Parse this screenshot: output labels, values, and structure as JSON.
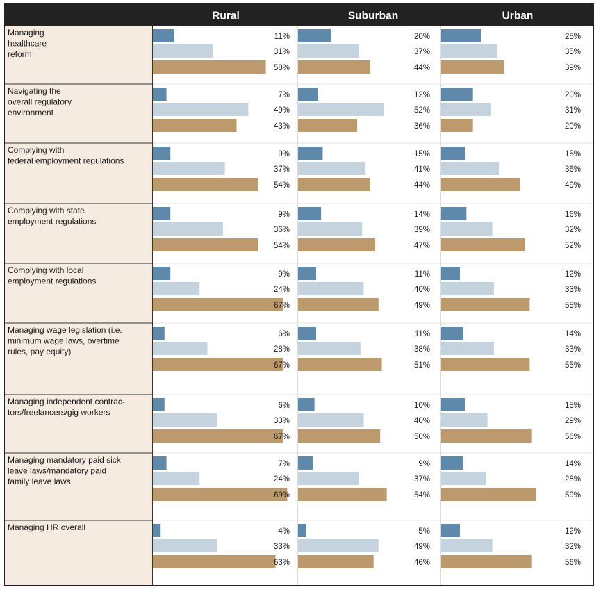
{
  "chart_data": {
    "type": "bar",
    "orientation": "horizontal",
    "groups": [
      "Rural",
      "Suburban",
      "Urban"
    ],
    "value_suffix": "%",
    "xlim": [
      0,
      70
    ],
    "colors": [
      "#5f89aa",
      "#c5d3df",
      "#bd996e"
    ],
    "label_bg": "#f6ebe1",
    "header_bg": "#222222",
    "rows": [
      {
        "label": [
          "Managing",
          "healthcare",
          "reform"
        ],
        "values": [
          [
            11,
            31,
            58
          ],
          [
            20,
            37,
            44
          ],
          [
            25,
            35,
            39
          ]
        ]
      },
      {
        "label": [
          "Navigating the",
          "overall regulatory",
          "environment"
        ],
        "values": [
          [
            7,
            49,
            43
          ],
          [
            12,
            52,
            36
          ],
          [
            20,
            31,
            20
          ]
        ]
      },
      {
        "label": [
          "Complying with",
          "federal employment regulations"
        ],
        "values": [
          [
            9,
            37,
            54
          ],
          [
            15,
            41,
            44
          ],
          [
            15,
            36,
            49
          ]
        ]
      },
      {
        "label": [
          "Complying with state",
          "employment regulations"
        ],
        "values": [
          [
            9,
            36,
            54
          ],
          [
            14,
            39,
            47
          ],
          [
            16,
            32,
            52
          ]
        ]
      },
      {
        "label": [
          "Complying with local",
          "employment regulations"
        ],
        "values": [
          [
            9,
            24,
            67
          ],
          [
            11,
            40,
            49
          ],
          [
            12,
            33,
            55
          ]
        ]
      },
      {
        "label": [
          "Managing wage legislation (i.e.",
          "minimum wage laws, overtime",
          "rules, pay equity)"
        ],
        "values": [
          [
            6,
            28,
            67
          ],
          [
            11,
            38,
            51
          ],
          [
            14,
            33,
            55
          ]
        ]
      },
      {
        "label": [
          "Managing independent contrac-",
          "tors/freelancers/gig workers"
        ],
        "values": [
          [
            6,
            33,
            67
          ],
          [
            10,
            40,
            50
          ],
          [
            15,
            29,
            56
          ]
        ]
      },
      {
        "label": [
          "Managing mandatory paid sick",
          "leave laws/mandatory paid",
          "family leave laws"
        ],
        "values": [
          [
            7,
            24,
            69
          ],
          [
            9,
            37,
            54
          ],
          [
            14,
            28,
            59
          ]
        ]
      },
      {
        "label": [
          "Managing HR overall"
        ],
        "values": [
          [
            4,
            33,
            63
          ],
          [
            5,
            49,
            46
          ],
          [
            12,
            32,
            56
          ]
        ]
      }
    ]
  }
}
